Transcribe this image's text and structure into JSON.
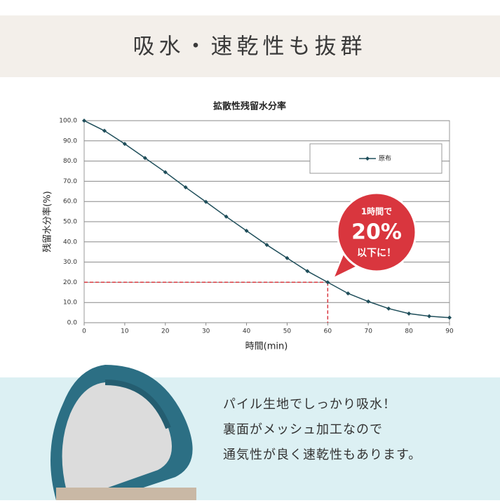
{
  "header": {
    "title": "吸水・速乾性も抜群"
  },
  "chart_data": {
    "type": "line",
    "title": "拡散性残留水分率",
    "x_label": "時間(min)",
    "y_label": "残留水分率(%)",
    "x": [
      0,
      5,
      10,
      15,
      20,
      25,
      30,
      35,
      40,
      45,
      50,
      55,
      60,
      65,
      70,
      75,
      80,
      85,
      90
    ],
    "series": [
      {
        "name": "原布",
        "color": "#1f4e5a",
        "values": [
          100,
          95,
          88.5,
          81.5,
          74.5,
          67,
          59.8,
          52.5,
          45.5,
          38.5,
          32,
          25.5,
          20,
          14.5,
          10.5,
          7,
          4.5,
          3.2,
          2.5
        ]
      }
    ],
    "xlim": [
      0,
      90
    ],
    "xticks": [
      0,
      10,
      20,
      30,
      40,
      50,
      60,
      70,
      80,
      90
    ],
    "ylim": [
      0,
      100
    ],
    "yticks": [
      {
        "value": 0,
        "label": "0.0"
      },
      {
        "value": 10,
        "label": "10.0"
      },
      {
        "value": 20,
        "label": "20.0"
      },
      {
        "value": 30,
        "label": "30.0"
      },
      {
        "value": 40,
        "label": "40.0"
      },
      {
        "value": 50,
        "label": "50.0"
      },
      {
        "value": 60,
        "label": "60.0"
      },
      {
        "value": 70,
        "label": "70.0"
      },
      {
        "value": 80,
        "label": "80.0"
      },
      {
        "value": 90,
        "label": "90.0"
      },
      {
        "value": 100,
        "label": "100.0"
      }
    ],
    "grid": true,
    "legend": "upper right",
    "callout": {
      "lines": [
        "1時間で",
        "20%",
        "以下に！"
      ],
      "x": 60,
      "y": 20,
      "color": "#d9363e"
    }
  },
  "feature": {
    "lines": [
      "パイル生地でしっかり吸水！",
      "裏面がメッシュ加工なので",
      "通気性が良く速乾性もあります。"
    ]
  }
}
